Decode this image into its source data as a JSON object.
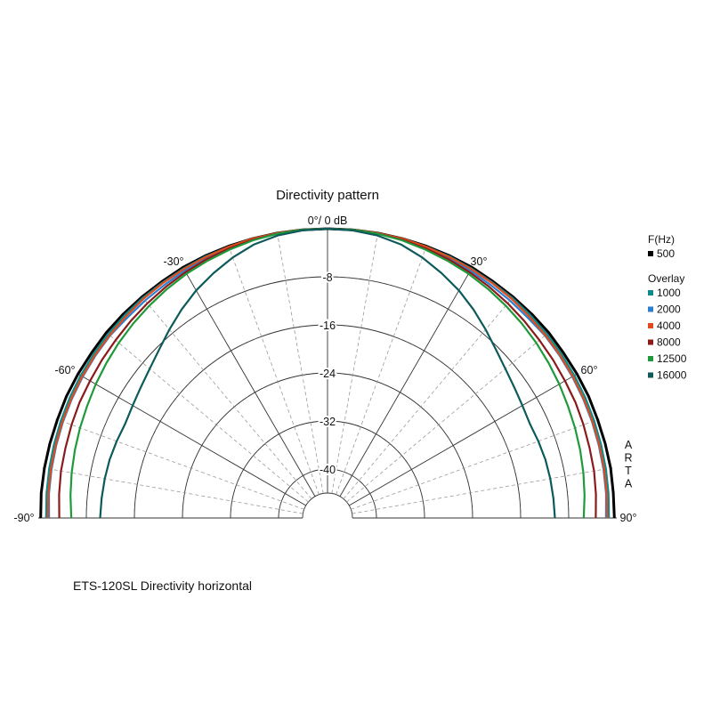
{
  "chart_data": {
    "type": "polar",
    "title": "Directivity pattern",
    "top_label": "0°/ 0 dB",
    "angle_range": [
      -90,
      90
    ],
    "radial_range_db": [
      -44,
      0
    ],
    "radial_ticks": [
      -8,
      -16,
      -24,
      -32,
      -40
    ],
    "radial_tick_labels": [
      "-8",
      "-16",
      "-24",
      "-32",
      "-40"
    ],
    "angle_ticks": [
      -90,
      -60,
      -30,
      30,
      60,
      90
    ],
    "angle_tick_labels": [
      "-90°",
      "-60°",
      "-30°",
      "30°",
      "60°",
      "90°"
    ],
    "grid": true,
    "legend": {
      "placement": "right",
      "header": "F(Hz)",
      "overlay_header": "Overlay"
    },
    "series": [
      {
        "name": "500",
        "color": "#000000",
        "angles": [
          -90,
          -85,
          -80,
          -75,
          -70,
          -65,
          -60,
          -55,
          -50,
          -45,
          -40,
          -35,
          -30,
          -25,
          -20,
          -15,
          -10,
          -5,
          0,
          5,
          10,
          15,
          20,
          25,
          30,
          35,
          40,
          45,
          50,
          55,
          60,
          65,
          70,
          75,
          80,
          85,
          90
        ],
        "values": [
          -0.4,
          -0.3,
          -0.3,
          -0.3,
          -0.3,
          -0.2,
          -0.2,
          -0.2,
          -0.1,
          -0.1,
          -0.1,
          -0.1,
          0,
          0,
          0,
          0,
          0,
          0,
          0,
          0,
          0,
          0,
          0,
          0,
          0,
          -0.1,
          -0.1,
          -0.1,
          -0.1,
          -0.2,
          -0.2,
          -0.2,
          -0.3,
          -0.3,
          -0.3,
          -0.4,
          -0.4
        ]
      },
      {
        "name": "1000",
        "color": "#0e8a8a",
        "angles": [
          -90,
          -85,
          -80,
          -75,
          -70,
          -65,
          -60,
          -55,
          -50,
          -45,
          -40,
          -35,
          -30,
          -25,
          -20,
          -15,
          -10,
          -5,
          0,
          5,
          10,
          15,
          20,
          25,
          30,
          35,
          40,
          45,
          50,
          55,
          60,
          65,
          70,
          75,
          80,
          85,
          90
        ],
        "values": [
          -1.3,
          -1.2,
          -1.1,
          -1.0,
          -0.9,
          -0.8,
          -0.7,
          -0.6,
          -0.5,
          -0.4,
          -0.3,
          -0.3,
          -0.2,
          -0.1,
          -0.1,
          0,
          0,
          0,
          0,
          0,
          0,
          0,
          -0.1,
          -0.1,
          -0.2,
          -0.3,
          -0.3,
          -0.4,
          -0.5,
          -0.6,
          -0.7,
          -0.8,
          -0.9,
          -1.0,
          -1.1,
          -1.2,
          -1.3
        ]
      },
      {
        "name": "2000",
        "color": "#2e7fd0",
        "angles": [
          -90,
          -85,
          -80,
          -75,
          -70,
          -65,
          -60,
          -55,
          -50,
          -45,
          -40,
          -35,
          -30,
          -25,
          -20,
          -15,
          -10,
          -5,
          0,
          5,
          10,
          15,
          20,
          25,
          30,
          35,
          40,
          45,
          50,
          55,
          60,
          65,
          70,
          75,
          80,
          85,
          90
        ],
        "values": [
          -1.8,
          -1.6,
          -1.5,
          -1.4,
          -1.3,
          -1.2,
          -1.1,
          -1.0,
          -0.9,
          -1.0,
          -0.9,
          -0.8,
          -0.6,
          -0.4,
          -0.3,
          -0.2,
          -0.1,
          0,
          0,
          0,
          -0.1,
          -0.2,
          -0.3,
          -0.4,
          -0.6,
          -0.8,
          -0.9,
          -1.0,
          -0.9,
          -1.0,
          -1.1,
          -1.2,
          -1.3,
          -1.4,
          -1.5,
          -1.6,
          -1.8
        ]
      },
      {
        "name": "4000",
        "color": "#e04a1c",
        "angles": [
          -90,
          -85,
          -80,
          -75,
          -70,
          -65,
          -60,
          -55,
          -50,
          -45,
          -40,
          -35,
          -30,
          -25,
          -20,
          -15,
          -10,
          -5,
          0,
          5,
          10,
          15,
          20,
          25,
          30,
          35,
          40,
          45,
          50,
          55,
          60,
          65,
          70,
          75,
          80,
          85,
          90
        ],
        "values": [
          -1.6,
          -1.5,
          -1.4,
          -1.3,
          -1.2,
          -1.1,
          -1.0,
          -0.9,
          -0.8,
          -0.7,
          -0.5,
          -0.4,
          -0.3,
          -0.2,
          -0.1,
          0,
          0,
          0,
          0,
          0,
          0,
          0,
          -0.1,
          -0.2,
          -0.3,
          -0.4,
          -0.5,
          -0.7,
          -0.8,
          -0.9,
          -1.0,
          -1.1,
          -1.2,
          -1.3,
          -1.4,
          -1.5,
          -1.6
        ]
      },
      {
        "name": "8000",
        "color": "#8b1a1a",
        "angles": [
          -90,
          -85,
          -80,
          -75,
          -70,
          -65,
          -60,
          -55,
          -50,
          -45,
          -40,
          -35,
          -30,
          -25,
          -20,
          -15,
          -10,
          -5,
          0,
          5,
          10,
          15,
          20,
          25,
          30,
          35,
          40,
          45,
          50,
          55,
          60,
          65,
          70,
          75,
          80,
          85,
          90
        ],
        "values": [
          -3.5,
          -3.3,
          -3.1,
          -3.0,
          -2.8,
          -2.6,
          -2.5,
          -2.3,
          -2.1,
          -1.8,
          -1.5,
          -1.2,
          -0.9,
          -0.6,
          -0.4,
          -0.2,
          -0.1,
          0,
          0,
          0,
          -0.1,
          -0.2,
          -0.4,
          -0.6,
          -0.9,
          -1.2,
          -1.5,
          -1.8,
          -2.1,
          -2.3,
          -2.5,
          -2.6,
          -2.8,
          -3.0,
          -3.1,
          -3.3,
          -3.5
        ]
      },
      {
        "name": "12500",
        "color": "#1e9a3a",
        "angles": [
          -90,
          -85,
          -80,
          -75,
          -70,
          -65,
          -60,
          -55,
          -50,
          -45,
          -40,
          -35,
          -30,
          -25,
          -20,
          -15,
          -10,
          -5,
          0,
          5,
          10,
          15,
          20,
          25,
          30,
          35,
          40,
          45,
          50,
          55,
          60,
          65,
          70,
          75,
          80,
          85,
          90
        ],
        "values": [
          -5.5,
          -5.2,
          -4.9,
          -4.6,
          -4.3,
          -4.0,
          -3.6,
          -3.2,
          -2.8,
          -2.4,
          -2.0,
          -1.6,
          -1.2,
          -0.9,
          -0.6,
          -0.3,
          -0.1,
          0,
          0,
          0,
          -0.1,
          -0.3,
          -0.6,
          -0.9,
          -1.2,
          -1.6,
          -2.0,
          -2.4,
          -2.8,
          -3.2,
          -3.6,
          -4.0,
          -4.3,
          -4.6,
          -4.9,
          -5.2,
          -5.5
        ]
      },
      {
        "name": "16000",
        "color": "#0d5a5a",
        "angles": [
          -90,
          -85,
          -80,
          -75,
          -70,
          -65,
          -60,
          -55,
          -50,
          -45,
          -40,
          -35,
          -30,
          -25,
          -20,
          -15,
          -10,
          -5,
          0,
          5,
          10,
          15,
          20,
          25,
          30,
          35,
          40,
          45,
          50,
          55,
          60,
          65,
          70,
          75,
          80,
          85,
          90
        ],
        "values": [
          -10.3,
          -10.4,
          -10.5,
          -10.6,
          -10.8,
          -11.0,
          -10.7,
          -10.2,
          -9.5,
          -8.5,
          -7.2,
          -5.8,
          -4.4,
          -3.2,
          -2.0,
          -1.0,
          -0.4,
          -0.1,
          0,
          -0.1,
          -0.4,
          -1.0,
          -2.0,
          -3.2,
          -4.4,
          -5.8,
          -7.2,
          -8.5,
          -9.5,
          -10.2,
          -10.7,
          -11.0,
          -10.8,
          -10.6,
          -10.5,
          -10.4,
          -10.3
        ]
      }
    ]
  },
  "side_label": "ARTA",
  "caption": "ETS-120SL Directivity horizontal"
}
